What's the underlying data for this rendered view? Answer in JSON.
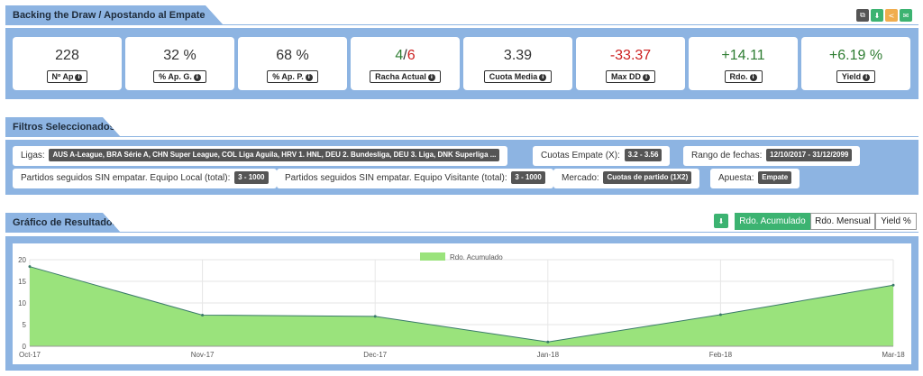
{
  "summary": {
    "title": "Backing the Draw / Apostando al Empate",
    "stats": [
      {
        "value": "228",
        "label": "Nº Ap",
        "color": "#333333"
      },
      {
        "value": "32 %",
        "label": "% Ap. G.",
        "color": "#333333"
      },
      {
        "value": "68 %",
        "label": "% Ap. P.",
        "color": "#333333"
      },
      {
        "value_a": "4",
        "value_sep": "/",
        "value_b": "6",
        "label": "Racha Actual"
      },
      {
        "value": "3.39",
        "label": "Cuota Media",
        "color": "#333333"
      },
      {
        "value": "-33.37",
        "label": "Max DD",
        "color": "#cc1f1f"
      },
      {
        "value": "+14.11",
        "label": "Rdo.",
        "color": "#2e7d32"
      },
      {
        "value": "+6.19 %",
        "label": "Yield",
        "color": "#2e7d32"
      }
    ],
    "tools": [
      "copy-icon",
      "download-icon",
      "share-icon",
      "envelope-icon"
    ]
  },
  "filters": {
    "title": "Filtros Seleccionados",
    "ligas_label": "Ligas:",
    "ligas_value": "AUS A-League, BRA Série A, CHN Super League, COL Liga Aguila, HRV 1. HNL, DEU 2. Bundesliga, DEU 3. Liga, DNK Superliga ...",
    "cuotas_label": "Cuotas Empate (X):",
    "cuotas_value": "3.2 - 3.56",
    "fechas_label": "Rango de fechas:",
    "fechas_value": "12/10/2017 - 31/12/2099",
    "local_label": "Partidos seguidos SIN empatar. Equipo Local (total):",
    "local_value": "3 - 1000",
    "visit_label": "Partidos seguidos SIN empatar. Equipo Visitante (total):",
    "visit_value": "3 - 1000",
    "mercado_label": "Mercado:",
    "mercado_value": "Cuotas de partido (1X2)",
    "apuesta_label": "Apuesta:",
    "apuesta_value": "Empate"
  },
  "results": {
    "title": "Gráfico de Resultados",
    "tabs": [
      "Rdo. Acumulado",
      "Rdo. Mensual",
      "Yield %"
    ],
    "active_tab": 0
  },
  "colors": {
    "header_blue": "#8db4e2",
    "green_button": "#3cb371",
    "fill": "#9ae37c",
    "line": "#3a7a6a"
  },
  "chart_data": {
    "type": "area",
    "title": "",
    "legend": [
      "Rdo. Acumulado"
    ],
    "legend_position": "top-center",
    "x": [
      "Oct-17",
      "Nov-17",
      "Dec-17",
      "Jan-18",
      "Feb-18",
      "Mar-18"
    ],
    "series": [
      {
        "name": "Rdo. Acumulado",
        "values": [
          18.4,
          7.2,
          6.9,
          1.0,
          7.3,
          14.11
        ]
      }
    ],
    "ylim": [
      0,
      20
    ],
    "yticks": [
      0,
      5,
      10,
      15,
      20
    ],
    "grid": true
  }
}
